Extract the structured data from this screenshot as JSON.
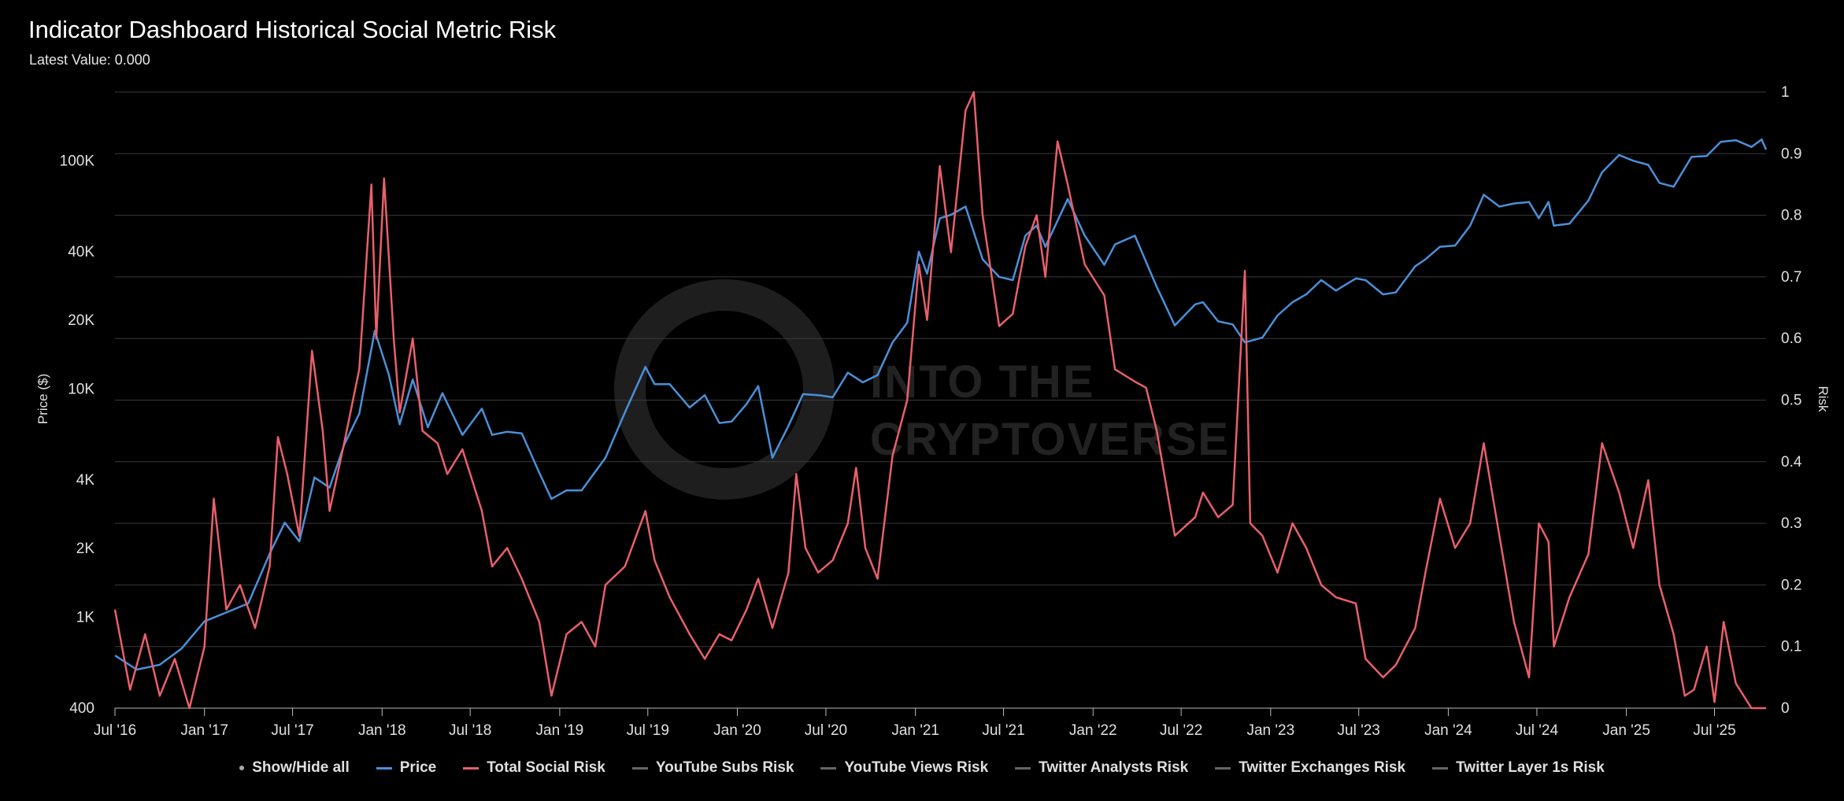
{
  "chart_data": {
    "type": "line",
    "title": "Indicator Dashboard Historical Social Metric Risk",
    "subtitle": "Latest Value: 0.000",
    "x_range": [
      "2016-07-01",
      "2025-10-15"
    ],
    "x_ticks": [
      "Jul '16",
      "Jan '17",
      "Jul '17",
      "Jan '18",
      "Jul '18",
      "Jan '19",
      "Jul '19",
      "Jan '20",
      "Jul '20",
      "Jan '21",
      "Jul '21",
      "Jan '22",
      "Jul '22",
      "Jan '23",
      "Jul '23",
      "Jan '24",
      "Jul '24",
      "Jan '25",
      "Jul '25"
    ],
    "y_left": {
      "label": "Price ($)",
      "scale": "log",
      "range": [
        400,
        200000
      ],
      "ticks": [
        {
          "value": 400,
          "label": "400"
        },
        {
          "value": 1000,
          "label": "1K"
        },
        {
          "value": 2000,
          "label": "2K"
        },
        {
          "value": 4000,
          "label": "4K"
        },
        {
          "value": 10000,
          "label": "10K"
        },
        {
          "value": 20000,
          "label": "20K"
        },
        {
          "value": 40000,
          "label": "40K"
        },
        {
          "value": 100000,
          "label": "100K"
        }
      ]
    },
    "y_right": {
      "label": "Risk",
      "scale": "linear",
      "range": [
        0,
        1
      ],
      "ticks": [
        {
          "value": 0,
          "label": "0"
        },
        {
          "value": 0.1,
          "label": "0.1"
        },
        {
          "value": 0.2,
          "label": "0.2"
        },
        {
          "value": 0.3,
          "label": "0.3"
        },
        {
          "value": 0.4,
          "label": "0.4"
        },
        {
          "value": 0.5,
          "label": "0.5"
        },
        {
          "value": 0.6,
          "label": "0.6"
        },
        {
          "value": 0.7,
          "label": "0.7"
        },
        {
          "value": 0.8,
          "label": "0.8"
        },
        {
          "value": 0.9,
          "label": "0.9"
        },
        {
          "value": 1,
          "label": "1"
        }
      ]
    },
    "grid": true,
    "legend_position": "bottom",
    "watermark": "INTO THE CRYPTOVERSE",
    "series": [
      {
        "name": "Price",
        "axis": "left",
        "color": "#4a90d9",
        "points": [
          [
            "2016-07-01",
            680
          ],
          [
            "2016-08-15",
            590
          ],
          [
            "2016-10-01",
            620
          ],
          [
            "2016-11-15",
            730
          ],
          [
            "2017-01-01",
            960
          ],
          [
            "2017-02-15",
            1050
          ],
          [
            "2017-04-01",
            1150
          ],
          [
            "2017-05-15",
            1900
          ],
          [
            "2017-06-15",
            2600
          ],
          [
            "2017-07-15",
            2150
          ],
          [
            "2017-08-15",
            4100
          ],
          [
            "2017-09-15",
            3700
          ],
          [
            "2017-10-15",
            5700
          ],
          [
            "2017-11-15",
            7800
          ],
          [
            "2017-12-17",
            18000
          ],
          [
            "2018-01-15",
            11500
          ],
          [
            "2018-02-06",
            7000
          ],
          [
            "2018-03-05",
            11000
          ],
          [
            "2018-04-05",
            6800
          ],
          [
            "2018-05-05",
            9600
          ],
          [
            "2018-06-15",
            6300
          ],
          [
            "2018-07-25",
            8200
          ],
          [
            "2018-08-15",
            6300
          ],
          [
            "2018-09-15",
            6500
          ],
          [
            "2018-10-15",
            6400
          ],
          [
            "2018-11-20",
            4300
          ],
          [
            "2018-12-15",
            3300
          ],
          [
            "2019-01-15",
            3600
          ],
          [
            "2019-02-15",
            3600
          ],
          [
            "2019-04-05",
            5000
          ],
          [
            "2019-05-15",
            7900
          ],
          [
            "2019-06-26",
            12500
          ],
          [
            "2019-07-15",
            10500
          ],
          [
            "2019-08-15",
            10500
          ],
          [
            "2019-09-25",
            8300
          ],
          [
            "2019-10-26",
            9400
          ],
          [
            "2019-11-25",
            7100
          ],
          [
            "2019-12-20",
            7200
          ],
          [
            "2020-01-20",
            8600
          ],
          [
            "2020-02-13",
            10300
          ],
          [
            "2020-03-13",
            5000
          ],
          [
            "2020-04-15",
            6900
          ],
          [
            "2020-05-15",
            9500
          ],
          [
            "2020-06-15",
            9400
          ],
          [
            "2020-07-15",
            9200
          ],
          [
            "2020-08-15",
            11800
          ],
          [
            "2020-09-15",
            10700
          ],
          [
            "2020-10-15",
            11500
          ],
          [
            "2020-11-15",
            16000
          ],
          [
            "2020-12-15",
            19500
          ],
          [
            "2021-01-08",
            40000
          ],
          [
            "2021-01-25",
            32000
          ],
          [
            "2021-02-20",
            56000
          ],
          [
            "2021-03-15",
            58000
          ],
          [
            "2021-04-14",
            63000
          ],
          [
            "2021-05-19",
            37000
          ],
          [
            "2021-06-22",
            31000
          ],
          [
            "2021-07-20",
            30000
          ],
          [
            "2021-08-15",
            47000
          ],
          [
            "2021-09-07",
            52000
          ],
          [
            "2021-09-25",
            42000
          ],
          [
            "2021-11-10",
            68000
          ],
          [
            "2021-12-15",
            47000
          ],
          [
            "2022-01-24",
            35000
          ],
          [
            "2022-02-15",
            43000
          ],
          [
            "2022-03-28",
            47000
          ],
          [
            "2022-05-12",
            28000
          ],
          [
            "2022-06-18",
            19000
          ],
          [
            "2022-07-30",
            23500
          ],
          [
            "2022-08-15",
            24000
          ],
          [
            "2022-09-15",
            19800
          ],
          [
            "2022-10-15",
            19200
          ],
          [
            "2022-11-09",
            16000
          ],
          [
            "2022-12-15",
            16800
          ],
          [
            "2023-01-15",
            21000
          ],
          [
            "2023-02-15",
            24000
          ],
          [
            "2023-03-15",
            26000
          ],
          [
            "2023-04-15",
            30000
          ],
          [
            "2023-05-15",
            27000
          ],
          [
            "2023-06-25",
            30500
          ],
          [
            "2023-07-15",
            30000
          ],
          [
            "2023-08-20",
            26000
          ],
          [
            "2023-09-15",
            26500
          ],
          [
            "2023-10-25",
            34500
          ],
          [
            "2023-11-15",
            37000
          ],
          [
            "2023-12-15",
            42000
          ],
          [
            "2024-01-15",
            42500
          ],
          [
            "2024-02-15",
            52000
          ],
          [
            "2024-03-14",
            71000
          ],
          [
            "2024-04-15",
            63000
          ],
          [
            "2024-05-15",
            65000
          ],
          [
            "2024-06-15",
            66000
          ],
          [
            "2024-07-05",
            56000
          ],
          [
            "2024-07-25",
            66000
          ],
          [
            "2024-08-05",
            52000
          ],
          [
            "2024-09-06",
            53000
          ],
          [
            "2024-10-15",
            67000
          ],
          [
            "2024-11-12",
            89000
          ],
          [
            "2024-12-17",
            106000
          ],
          [
            "2025-01-15",
            100000
          ],
          [
            "2025-02-15",
            96000
          ],
          [
            "2025-03-10",
            80000
          ],
          [
            "2025-04-08",
            77000
          ],
          [
            "2025-05-15",
            104000
          ],
          [
            "2025-06-15",
            105000
          ],
          [
            "2025-07-14",
            121000
          ],
          [
            "2025-08-14",
            123000
          ],
          [
            "2025-09-15",
            115000
          ],
          [
            "2025-10-06",
            124000
          ],
          [
            "2025-10-15",
            112000
          ]
        ]
      },
      {
        "name": "Total Social Risk",
        "axis": "right",
        "color": "#e8606a",
        "points": [
          [
            "2016-07-01",
            0.16
          ],
          [
            "2016-08-01",
            0.03
          ],
          [
            "2016-09-01",
            0.12
          ],
          [
            "2016-10-01",
            0.02
          ],
          [
            "2016-11-01",
            0.08
          ],
          [
            "2016-12-01",
            0.0
          ],
          [
            "2017-01-01",
            0.1
          ],
          [
            "2017-01-20",
            0.34
          ],
          [
            "2017-02-15",
            0.16
          ],
          [
            "2017-03-15",
            0.2
          ],
          [
            "2017-04-15",
            0.13
          ],
          [
            "2017-05-15",
            0.23
          ],
          [
            "2017-06-01",
            0.44
          ],
          [
            "2017-06-20",
            0.38
          ],
          [
            "2017-07-15",
            0.28
          ],
          [
            "2017-08-10",
            0.58
          ],
          [
            "2017-09-01",
            0.45
          ],
          [
            "2017-09-15",
            0.32
          ],
          [
            "2017-10-15",
            0.43
          ],
          [
            "2017-11-15",
            0.55
          ],
          [
            "2017-12-10",
            0.85
          ],
          [
            "2017-12-20",
            0.6
          ],
          [
            "2018-01-05",
            0.86
          ],
          [
            "2018-01-25",
            0.6
          ],
          [
            "2018-02-06",
            0.48
          ],
          [
            "2018-03-05",
            0.6
          ],
          [
            "2018-03-25",
            0.45
          ],
          [
            "2018-04-25",
            0.43
          ],
          [
            "2018-05-15",
            0.38
          ],
          [
            "2018-06-15",
            0.42
          ],
          [
            "2018-07-25",
            0.32
          ],
          [
            "2018-08-15",
            0.23
          ],
          [
            "2018-09-15",
            0.26
          ],
          [
            "2018-10-15",
            0.21
          ],
          [
            "2018-11-20",
            0.14
          ],
          [
            "2018-12-15",
            0.02
          ],
          [
            "2019-01-15",
            0.12
          ],
          [
            "2019-02-15",
            0.14
          ],
          [
            "2019-03-15",
            0.1
          ],
          [
            "2019-04-05",
            0.2
          ],
          [
            "2019-05-15",
            0.23
          ],
          [
            "2019-06-26",
            0.32
          ],
          [
            "2019-07-15",
            0.24
          ],
          [
            "2019-08-15",
            0.18
          ],
          [
            "2019-09-25",
            0.12
          ],
          [
            "2019-10-26",
            0.08
          ],
          [
            "2019-11-25",
            0.12
          ],
          [
            "2019-12-20",
            0.11
          ],
          [
            "2020-01-20",
            0.16
          ],
          [
            "2020-02-13",
            0.21
          ],
          [
            "2020-03-13",
            0.13
          ],
          [
            "2020-04-15",
            0.22
          ],
          [
            "2020-05-01",
            0.38
          ],
          [
            "2020-05-20",
            0.26
          ],
          [
            "2020-06-15",
            0.22
          ],
          [
            "2020-07-15",
            0.24
          ],
          [
            "2020-08-15",
            0.3
          ],
          [
            "2020-09-01",
            0.39
          ],
          [
            "2020-09-20",
            0.26
          ],
          [
            "2020-10-15",
            0.21
          ],
          [
            "2020-11-15",
            0.41
          ],
          [
            "2020-12-15",
            0.5
          ],
          [
            "2021-01-08",
            0.72
          ],
          [
            "2021-01-25",
            0.63
          ],
          [
            "2021-02-20",
            0.88
          ],
          [
            "2021-03-15",
            0.74
          ],
          [
            "2021-04-14",
            0.97
          ],
          [
            "2021-05-01",
            1.0
          ],
          [
            "2021-05-19",
            0.8
          ],
          [
            "2021-06-22",
            0.62
          ],
          [
            "2021-07-20",
            0.64
          ],
          [
            "2021-08-15",
            0.75
          ],
          [
            "2021-09-07",
            0.8
          ],
          [
            "2021-09-25",
            0.7
          ],
          [
            "2021-10-20",
            0.92
          ],
          [
            "2021-11-10",
            0.85
          ],
          [
            "2021-12-15",
            0.72
          ],
          [
            "2022-01-24",
            0.67
          ],
          [
            "2022-02-15",
            0.55
          ],
          [
            "2022-03-28",
            0.53
          ],
          [
            "2022-04-20",
            0.52
          ],
          [
            "2022-05-12",
            0.45
          ],
          [
            "2022-06-18",
            0.28
          ],
          [
            "2022-07-30",
            0.31
          ],
          [
            "2022-08-15",
            0.35
          ],
          [
            "2022-09-15",
            0.31
          ],
          [
            "2022-10-15",
            0.33
          ],
          [
            "2022-11-09",
            0.71
          ],
          [
            "2022-11-20",
            0.3
          ],
          [
            "2022-12-15",
            0.28
          ],
          [
            "2023-01-15",
            0.22
          ],
          [
            "2023-02-15",
            0.3
          ],
          [
            "2023-03-15",
            0.26
          ],
          [
            "2023-04-15",
            0.2
          ],
          [
            "2023-05-15",
            0.18
          ],
          [
            "2023-06-25",
            0.17
          ],
          [
            "2023-07-15",
            0.08
          ],
          [
            "2023-08-20",
            0.05
          ],
          [
            "2023-09-15",
            0.07
          ],
          [
            "2023-10-25",
            0.13
          ],
          [
            "2023-11-15",
            0.22
          ],
          [
            "2023-12-15",
            0.34
          ],
          [
            "2024-01-15",
            0.26
          ],
          [
            "2024-02-15",
            0.3
          ],
          [
            "2024-03-14",
            0.43
          ],
          [
            "2024-04-15",
            0.28
          ],
          [
            "2024-05-15",
            0.14
          ],
          [
            "2024-06-15",
            0.05
          ],
          [
            "2024-07-05",
            0.3
          ],
          [
            "2024-07-25",
            0.27
          ],
          [
            "2024-08-05",
            0.1
          ],
          [
            "2024-09-06",
            0.18
          ],
          [
            "2024-10-15",
            0.25
          ],
          [
            "2024-11-12",
            0.43
          ],
          [
            "2024-12-17",
            0.35
          ],
          [
            "2025-01-15",
            0.26
          ],
          [
            "2025-02-15",
            0.37
          ],
          [
            "2025-03-10",
            0.2
          ],
          [
            "2025-04-08",
            0.12
          ],
          [
            "2025-05-01",
            0.02
          ],
          [
            "2025-05-20",
            0.03
          ],
          [
            "2025-06-15",
            0.1
          ],
          [
            "2025-07-01",
            0.01
          ],
          [
            "2025-07-20",
            0.14
          ],
          [
            "2025-08-14",
            0.04
          ],
          [
            "2025-09-15",
            0.0
          ],
          [
            "2025-10-15",
            0.0
          ]
        ]
      }
    ],
    "legend_items": [
      {
        "name": "Show/Hide all",
        "marker": "dot",
        "color": "#aaaaaa"
      },
      {
        "name": "Price",
        "marker": "line",
        "color": "#4a90d9"
      },
      {
        "name": "Total Social Risk",
        "marker": "line",
        "color": "#e8606a"
      },
      {
        "name": "YouTube Subs Risk",
        "marker": "line",
        "color": "#666666"
      },
      {
        "name": "YouTube Views Risk",
        "marker": "line",
        "color": "#666666"
      },
      {
        "name": "Twitter Analysts Risk",
        "marker": "line",
        "color": "#666666"
      },
      {
        "name": "Twitter Exchanges Risk",
        "marker": "line",
        "color": "#666666"
      },
      {
        "name": "Twitter Layer 1s Risk",
        "marker": "line",
        "color": "#666666"
      }
    ]
  }
}
